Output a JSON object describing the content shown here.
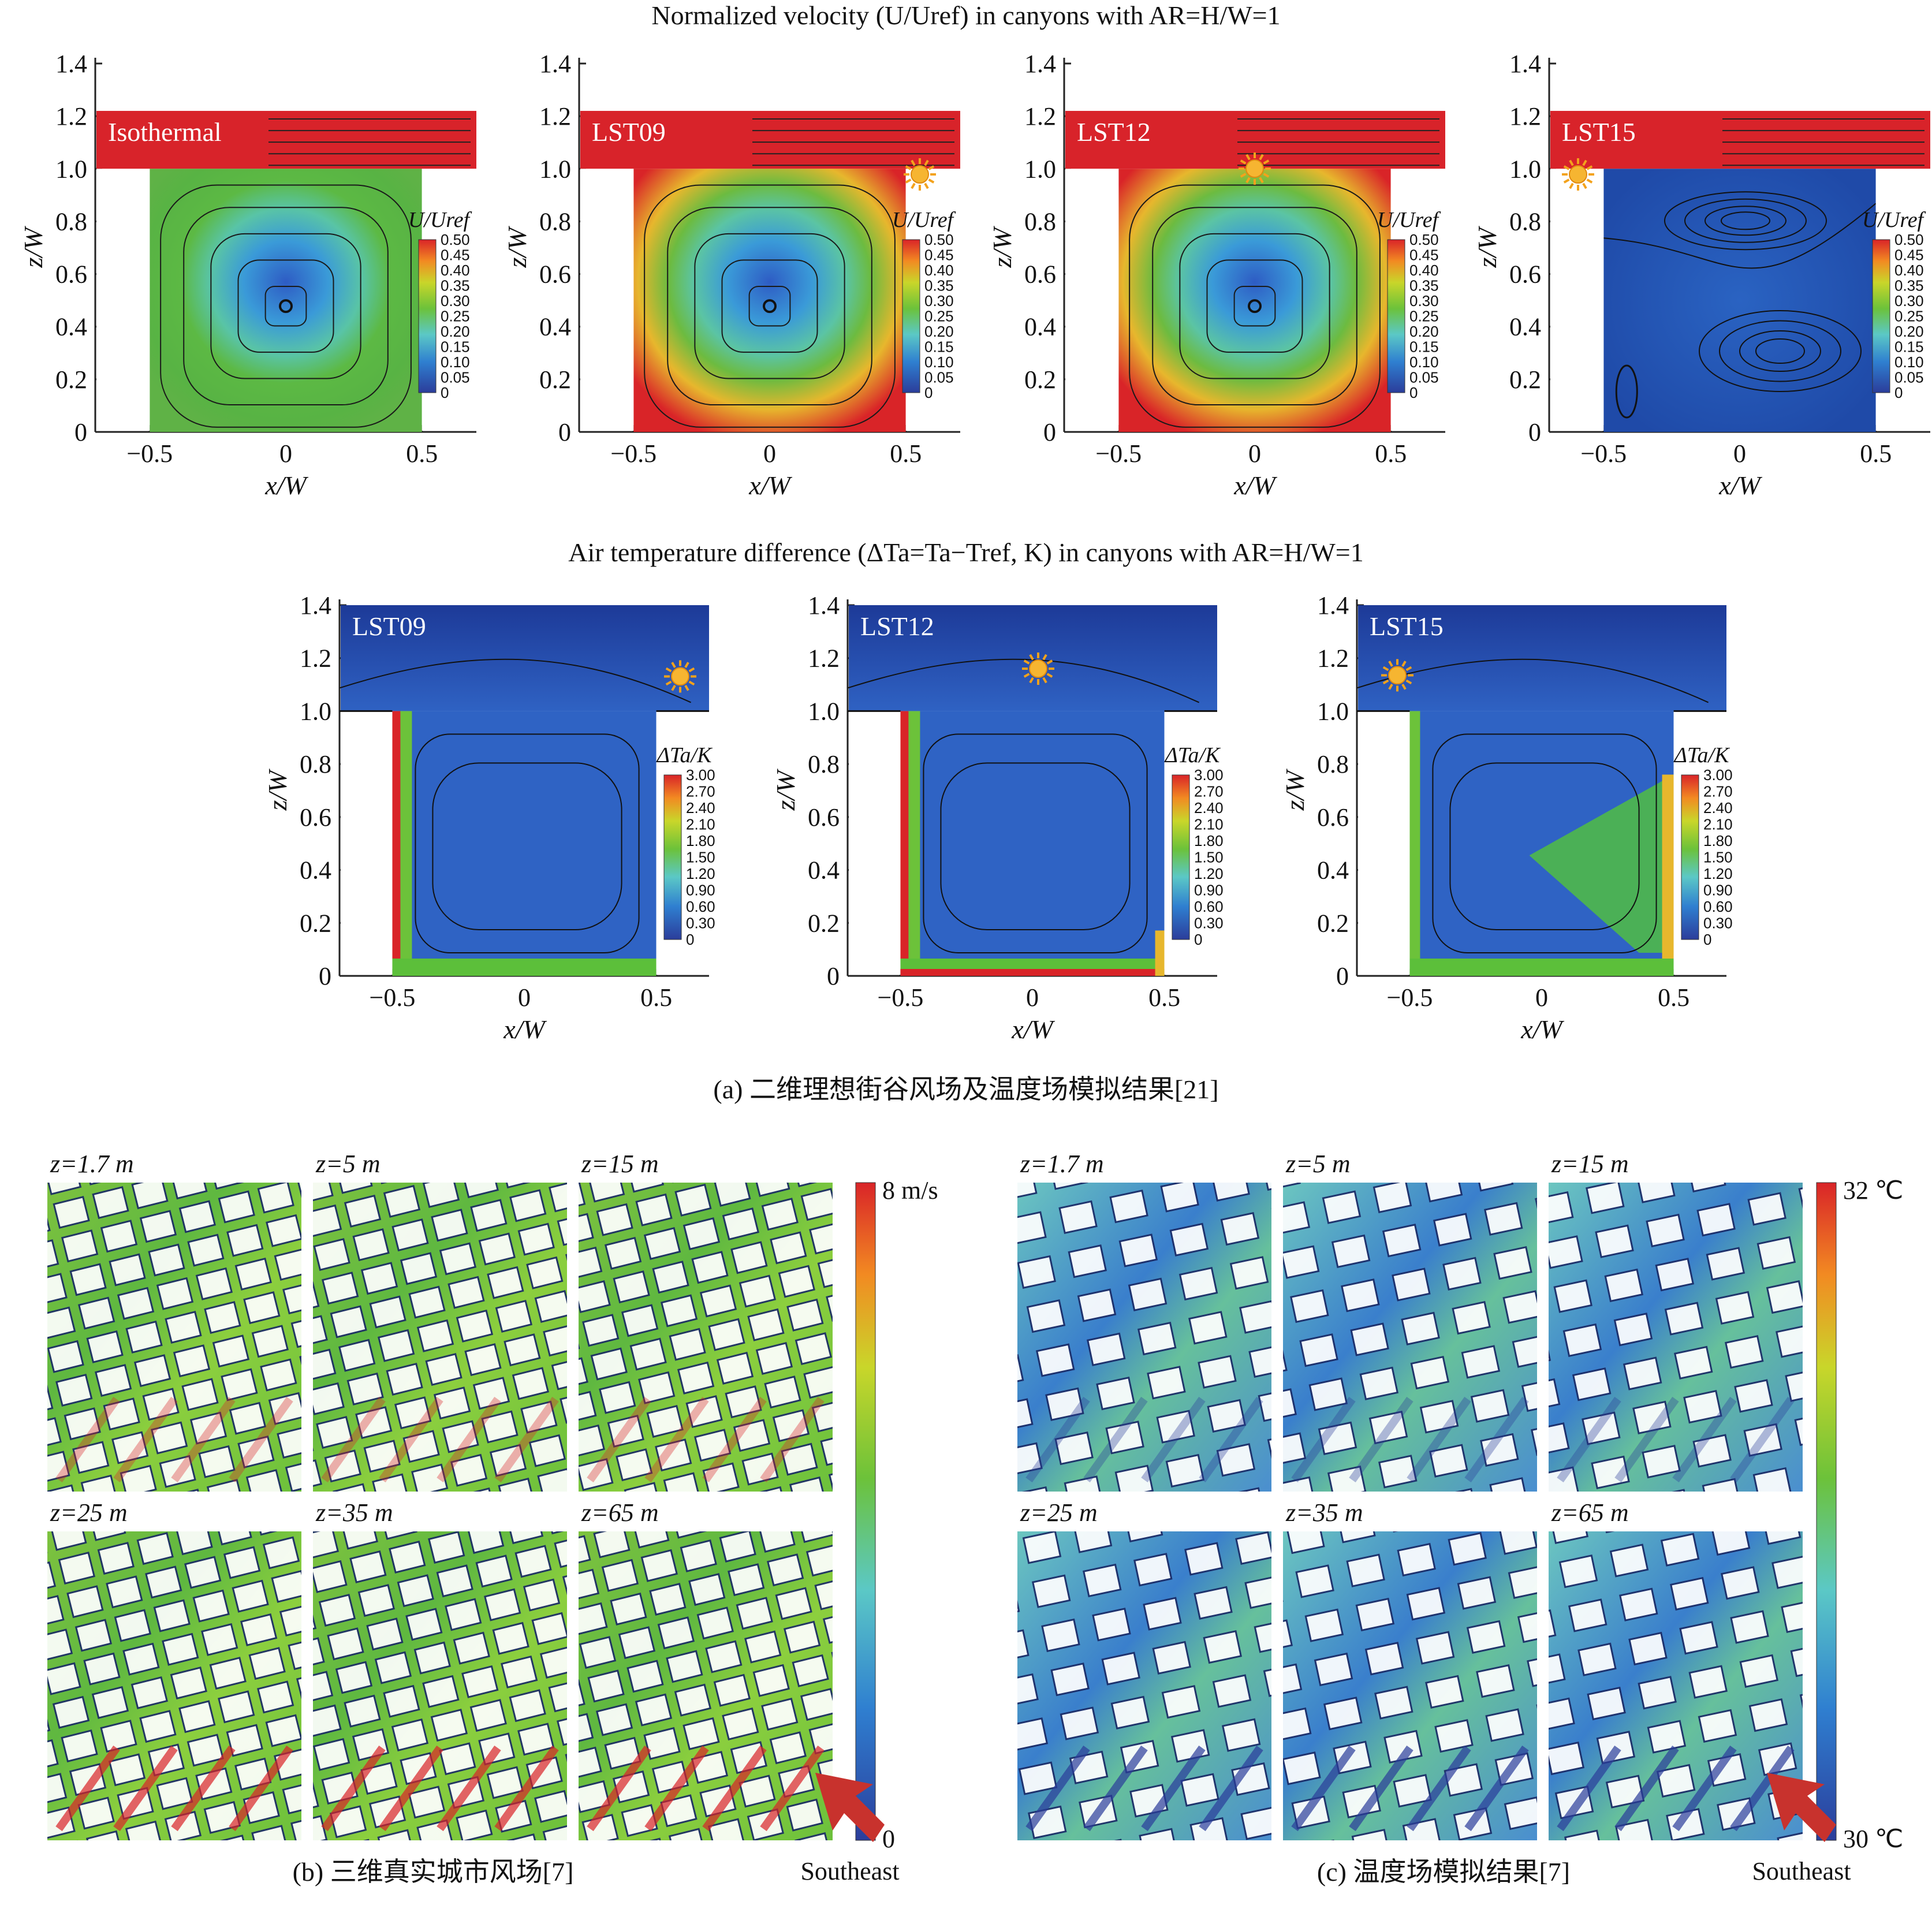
{
  "figure": {
    "section_a_title": "Normalized velocity (U/Uref) in canyons with AR=H/W=1",
    "section_a_temp_title": "Air temperature difference (ΔTa=Ta−Tref, K) in canyons with AR=H/W=1",
    "caption_a": "(a) 二维理想街谷风场及温度场模拟结果[21]",
    "caption_b": "(b) 三维真实城市风场[7]",
    "caption_c": "(c) 温度场模拟结果[7]",
    "southeast_label": "Southeast"
  },
  "velocity_panels": [
    {
      "label": "Isothermal",
      "sun": "none"
    },
    {
      "label": "LST09",
      "sun": "right"
    },
    {
      "label": "LST12",
      "sun": "center"
    },
    {
      "label": "LST15",
      "sun": "left"
    }
  ],
  "temperature_panels": [
    {
      "label": "LST09",
      "sun": "right"
    },
    {
      "label": "LST12",
      "sun": "center"
    },
    {
      "label": "LST15",
      "sun": "left"
    }
  ],
  "velocity_colorbar": {
    "title": "U/Uref",
    "ticks": [
      "0.50",
      "0.45",
      "0.40",
      "0.35",
      "0.30",
      "0.25",
      "0.20",
      "0.15",
      "0.10",
      "0.05",
      "0"
    ]
  },
  "temperature_colorbar": {
    "title": "ΔTa/K",
    "ticks": [
      "3.00",
      "2.70",
      "2.40",
      "2.10",
      "1.80",
      "1.50",
      "1.20",
      "0.90",
      "0.60",
      "0.30",
      "0"
    ]
  },
  "axes": {
    "xlabel": "x/W",
    "ylabel": "z/W",
    "x_ticks": [
      "−0.5",
      "0",
      "0.5"
    ],
    "y_ticks": [
      "0",
      "0.2",
      "0.4",
      "0.6",
      "0.8",
      "1.0",
      "1.2",
      "1.4"
    ]
  },
  "wind_maps": {
    "heights": [
      "z=1.7 m",
      "z=5 m",
      "z=15 m",
      "z=25 m",
      "z=35 m",
      "z=65 m"
    ],
    "colorbar_max": "8 m/s",
    "colorbar_min": "0"
  },
  "temp_maps": {
    "heights": [
      "z=1.7 m",
      "z=5 m",
      "z=15 m",
      "z=25 m",
      "z=35 m",
      "z=65 m"
    ],
    "colorbar_max": "32 ℃",
    "colorbar_min": "30 ℃"
  },
  "chart_data": [
    {
      "type": "heatmap",
      "title": "Normalized velocity (U/Uref) in canyons with AR=H/W=1",
      "panels": [
        "Isothermal",
        "LST09",
        "LST12",
        "LST15"
      ],
      "xlabel": "x/W",
      "ylabel": "z/W",
      "xlim": [
        -0.7,
        0.7
      ],
      "ylim": [
        0,
        1.4
      ],
      "colorbar": {
        "label": "U/Uref",
        "range": [
          0,
          0.5
        ]
      }
    },
    {
      "type": "heatmap",
      "title": "Air temperature difference (ΔTa=Ta−Tref, K) in canyons with AR=H/W=1",
      "panels": [
        "LST09",
        "LST12",
        "LST15"
      ],
      "xlabel": "x/W",
      "ylabel": "z/W",
      "xlim": [
        -0.7,
        0.7
      ],
      "ylim": [
        0,
        1.4
      ],
      "colorbar": {
        "label": "ΔTa/K",
        "range": [
          0,
          3.0
        ]
      },
      "contour_levels": [
        0.0,
        0.3,
        0.6,
        0.9,
        1.2,
        1.5,
        1.8,
        2.1,
        2.4,
        3.0
      ]
    },
    {
      "type": "heatmap",
      "title": "",
      "panels": [
        "z=1.7 m",
        "z=5 m",
        "z=15 m",
        "z=25 m",
        "z=35 m",
        "z=65 m"
      ],
      "colorbar": {
        "label": "",
        "range": [
          0,
          8
        ],
        "unit": "m/s"
      }
    },
    {
      "type": "heatmap",
      "title": "",
      "panels": [
        "z=1.7 m",
        "z=5 m",
        "z=15 m",
        "z=25 m",
        "z=35 m",
        "z=65 m"
      ],
      "colorbar": {
        "label": "",
        "range": [
          30,
          32
        ],
        "unit": "℃"
      }
    }
  ]
}
